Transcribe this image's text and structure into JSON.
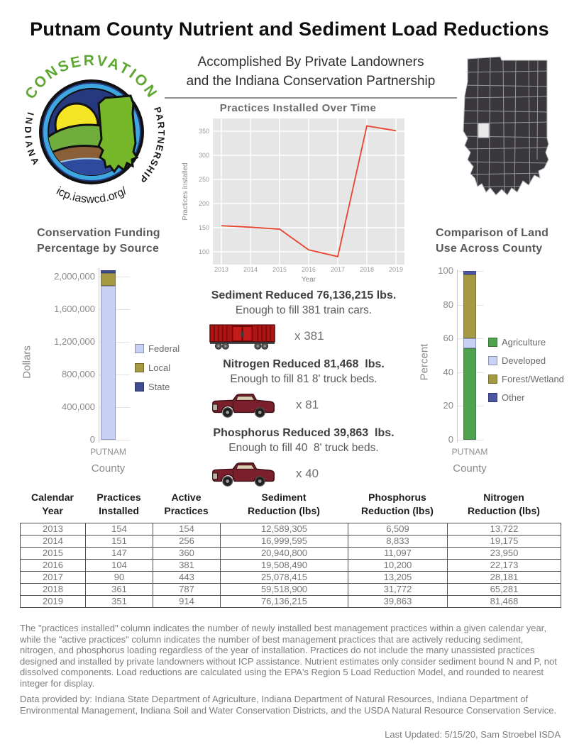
{
  "header": {
    "title": "Putnam County Nutrient and Sediment Load Reductions",
    "subtitle": "Accomplished By Private Landowners\nand the Indiana Conservation Partnership"
  },
  "logo": {
    "top_text": "CONSERVATION",
    "left_text": "INDIANA",
    "right_text": "PARTNERSHIP",
    "bottom_text": "icp.iaswcd.org/"
  },
  "indiana_map": {
    "highlighted_county": "Putnam",
    "state_fill": "#3a383c",
    "highlight_fill": "#e9e9e9"
  },
  "chart_data": [
    {
      "id": "practices_over_time",
      "type": "line",
      "title": "Practices Installed Over Time",
      "xlabel": "Year",
      "ylabel": "Practices Installed",
      "x": [
        2013,
        2014,
        2015,
        2016,
        2017,
        2018,
        2019
      ],
      "values": [
        154,
        151,
        147,
        104,
        90,
        361,
        351
      ],
      "yticks": [
        100,
        150,
        200,
        250,
        300,
        350
      ],
      "ylim": [
        75,
        380
      ],
      "grid": true,
      "line_color": "#e8432f",
      "panel_color": "#e6e6e6"
    },
    {
      "id": "funding_by_source",
      "type": "bar",
      "title": "Conservation Funding\nPercentage by Source",
      "xlabel": "County",
      "ylabel": "Dollars",
      "categories": [
        "PUTNAM"
      ],
      "series": [
        {
          "name": "Federal",
          "color": "#c9d1f4",
          "values": [
            1890000
          ]
        },
        {
          "name": "Local",
          "color": "#a59a41",
          "values": [
            155000
          ]
        },
        {
          "name": "State",
          "color": "#3f4c90",
          "values": [
            35000
          ]
        }
      ],
      "yticks": [
        0,
        400000,
        800000,
        1200000,
        1600000,
        2000000
      ],
      "ytick_labels": [
        "0",
        "400,000",
        "800,000",
        "1,200,000",
        "1,600,000",
        "2,000,000"
      ],
      "ylim": [
        0,
        2090000
      ],
      "legend_position": "right",
      "note": "stacked bar; dollar values estimated from axis"
    },
    {
      "id": "land_use",
      "type": "bar",
      "title": "Comparison of Land\nUse Across County",
      "xlabel": "County",
      "ylabel": "Percent",
      "categories": [
        "PUTNAM"
      ],
      "series": [
        {
          "name": "Agriculture",
          "color": "#4ea44c",
          "values": [
            54
          ]
        },
        {
          "name": "Developed",
          "color": "#c9d1f4",
          "values": [
            6
          ]
        },
        {
          "name": "Forest/Wetland",
          "color": "#a59a41",
          "values": [
            38
          ]
        },
        {
          "name": "Other",
          "color": "#4b55a1",
          "values": [
            2
          ]
        }
      ],
      "yticks": [
        0,
        20,
        40,
        60,
        80,
        100
      ],
      "ytick_labels": [
        "0",
        "20",
        "40",
        "60",
        "80",
        "100"
      ],
      "ylim": [
        0,
        100
      ],
      "legend_position": "right",
      "note": "stacked bar; percentages estimated from axis"
    }
  ],
  "reductions": [
    {
      "heading": "Sediment Reduced 76,136,215 lbs.",
      "subtext": "Enough to fill 381 train cars.",
      "icon": "train-car",
      "multiplier": "x 381"
    },
    {
      "heading": "Nitrogen Reduced 81,468  lbs.",
      "subtext": "Enough to fill 81 8' truck beds.",
      "icon": "pickup-truck",
      "multiplier": "x 81"
    },
    {
      "heading": "Phosphorus Reduced 39,863  lbs.",
      "subtext": "Enough to fill 40  8' truck beds.",
      "icon": "pickup-truck",
      "multiplier": "x 40"
    }
  ],
  "table": {
    "headers": [
      "Calendar\nYear",
      "Practices\nInstalled",
      "Active\nPractices",
      "Sediment\nReduction (lbs)",
      "Phosphorus\nReduction (lbs)",
      "Nitrogen\nReduction (lbs)"
    ],
    "rows": [
      [
        "2013",
        "154",
        "154",
        "12,589,305",
        "6,509",
        "13,722"
      ],
      [
        "2014",
        "151",
        "256",
        "16,999,595",
        "8,833",
        "19,175"
      ],
      [
        "2015",
        "147",
        "360",
        "20,940,800",
        "11,097",
        "23,950"
      ],
      [
        "2016",
        "104",
        "381",
        "19,508,490",
        "10,200",
        "22,173"
      ],
      [
        "2017",
        "90",
        "443",
        "25,078,415",
        "13,205",
        "28,181"
      ],
      [
        "2018",
        "361",
        "787",
        "59,518,900",
        "31,772",
        "65,281"
      ],
      [
        "2019",
        "351",
        "914",
        "76,136,215",
        "39,863",
        "81,468"
      ]
    ]
  },
  "footnotes": {
    "methodology": "The \"practices installed\" column indicates the number of newly installed best management practices within a given calendar year, while the \"active practices\" column indicates the number of best management practices that are actively reducing sediment, nitrogen, and phosphorus loading regardless of the year of installation.  Practices do not include the many unassisted practices designed and installed by private landowners without ICP assistance. Nutrient estimates only consider sediment bound N and P, not dissolved components. Load reductions are calculated using the EPA's Region 5 Load Reduction Model, and rounded to nearest integer for display.",
    "data_provided": "Data provided by: Indiana State Department of Agriculture, Indiana Department of Natural Resources, Indiana Department of Environmental Management, Indiana Soil and Water Conservation Districts, and the USDA Natural Resource Conservation Service.",
    "last_updated": "Last Updated: 5/15/20, Sam Stroebel ISDA"
  }
}
